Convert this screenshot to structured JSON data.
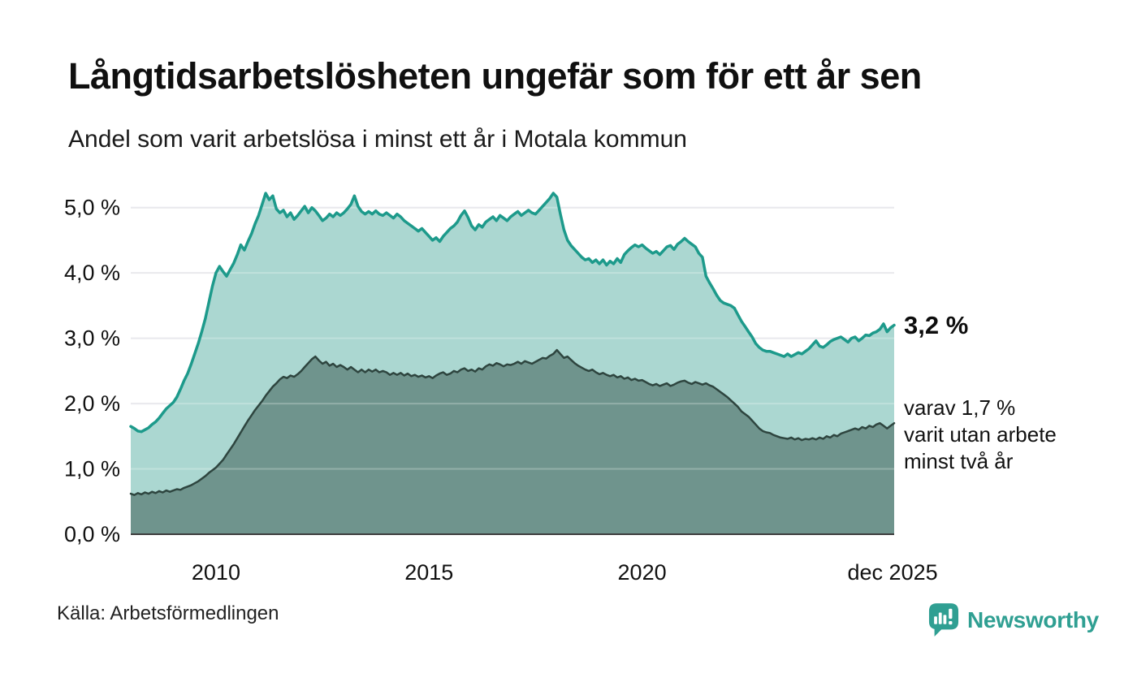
{
  "header": {
    "title": "Långtidsarbetslösheten ungefär som för ett år sen",
    "subtitle": "Andel som varit arbetslösa i minst ett år i Motala kommun"
  },
  "annotations": {
    "latest_total": "3,2 %",
    "two_year_lines": [
      "varav 1,7 %",
      "varit utan arbete",
      "minst två år"
    ]
  },
  "footer": {
    "source": "Källa: Arbetsförmedlingen",
    "brand": "Newsworthy"
  },
  "colors": {
    "accent_teal": "#1d9a8b",
    "fill_light": "#abd7d1",
    "line_dark": "#2e453f",
    "fill_dark": "#6f948d",
    "grid": "#e2e2e7",
    "grid_overlay": "rgba(255,255,255,0.25)",
    "axis": "#3d3d3d",
    "text": "#111111",
    "brand_teal": "#2f9f92"
  },
  "chart_data": {
    "type": "area",
    "title": "Långtidsarbetslösheten ungefär som för ett år sen",
    "subtitle": "Andel som varit arbetslösa i minst ett år i Motala kommun",
    "x_start_year": 2008,
    "points_per_year": 12,
    "x_end_year_fraction": 2025.9167,
    "ylim": [
      0,
      5.45
    ],
    "grid": true,
    "legend_position": "right-annotations",
    "y_ticks": [
      {
        "value": 0,
        "label": "0,0 %"
      },
      {
        "value": 1,
        "label": "1,0 %"
      },
      {
        "value": 2,
        "label": "2,0 %"
      },
      {
        "value": 3,
        "label": "3,0 %"
      },
      {
        "value": 4,
        "label": "4,0 %"
      },
      {
        "value": 5,
        "label": "5,0 %"
      }
    ],
    "x_ticks": [
      {
        "label": "2010",
        "year": 2010.0
      },
      {
        "label": "2015",
        "year": 2015.0
      },
      {
        "label": "2020",
        "year": 2020.0
      },
      {
        "label": "dec 2025",
        "year": 2025.88
      }
    ],
    "series": [
      {
        "name": "Andel som varit arbetslösa minst ett år",
        "latest_value": 3.2,
        "color": "#1d9a8b",
        "fill": "#abd7d1",
        "stroke_width": 3.5,
        "values": [
          1.65,
          1.62,
          1.58,
          1.57,
          1.6,
          1.63,
          1.68,
          1.72,
          1.78,
          1.85,
          1.92,
          1.97,
          2.02,
          2.1,
          2.22,
          2.35,
          2.46,
          2.6,
          2.76,
          2.92,
          3.1,
          3.3,
          3.55,
          3.8,
          4.0,
          4.1,
          4.02,
          3.95,
          4.05,
          4.15,
          4.28,
          4.43,
          4.35,
          4.48,
          4.6,
          4.75,
          4.88,
          5.05,
          5.22,
          5.12,
          5.18,
          4.98,
          4.92,
          4.96,
          4.86,
          4.92,
          4.82,
          4.88,
          4.95,
          5.02,
          4.92,
          5.0,
          4.95,
          4.88,
          4.8,
          4.84,
          4.9,
          4.86,
          4.92,
          4.88,
          4.92,
          4.98,
          5.05,
          5.18,
          5.02,
          4.94,
          4.9,
          4.94,
          4.9,
          4.95,
          4.9,
          4.88,
          4.92,
          4.88,
          4.84,
          4.9,
          4.86,
          4.8,
          4.76,
          4.72,
          4.68,
          4.64,
          4.68,
          4.62,
          4.56,
          4.5,
          4.54,
          4.48,
          4.56,
          4.62,
          4.68,
          4.72,
          4.78,
          4.88,
          4.95,
          4.85,
          4.72,
          4.66,
          4.74,
          4.7,
          4.78,
          4.82,
          4.86,
          4.8,
          4.88,
          4.84,
          4.8,
          4.86,
          4.9,
          4.94,
          4.88,
          4.92,
          4.96,
          4.92,
          4.9,
          4.96,
          5.02,
          5.08,
          5.14,
          5.22,
          5.16,
          4.9,
          4.66,
          4.5,
          4.42,
          4.36,
          4.3,
          4.24,
          4.2,
          4.22,
          4.16,
          4.2,
          4.14,
          4.2,
          4.12,
          4.18,
          4.14,
          4.22,
          4.16,
          4.28,
          4.34,
          4.39,
          4.43,
          4.4,
          4.43,
          4.38,
          4.34,
          4.3,
          4.33,
          4.28,
          4.34,
          4.4,
          4.42,
          4.36,
          4.44,
          4.48,
          4.53,
          4.48,
          4.44,
          4.4,
          4.3,
          4.24,
          3.95,
          3.85,
          3.76,
          3.66,
          3.58,
          3.54,
          3.52,
          3.5,
          3.46,
          3.36,
          3.26,
          3.18,
          3.1,
          3.02,
          2.92,
          2.86,
          2.82,
          2.8,
          2.8,
          2.78,
          2.76,
          2.74,
          2.72,
          2.76,
          2.72,
          2.75,
          2.78,
          2.76,
          2.8,
          2.84,
          2.9,
          2.96,
          2.88,
          2.86,
          2.9,
          2.95,
          2.98,
          3.0,
          3.02,
          2.98,
          2.94,
          3.0,
          3.02,
          2.96,
          3.0,
          3.05,
          3.04,
          3.08,
          3.1,
          3.14,
          3.22,
          3.1,
          3.16,
          3.2
        ]
      },
      {
        "name": "varav utan arbete minst två år",
        "latest_value": 1.7,
        "color": "#2e453f",
        "fill": "#6f948d",
        "stroke_width": 2.5,
        "values": [
          0.62,
          0.6,
          0.63,
          0.61,
          0.64,
          0.62,
          0.65,
          0.63,
          0.66,
          0.64,
          0.67,
          0.65,
          0.67,
          0.69,
          0.68,
          0.71,
          0.73,
          0.75,
          0.78,
          0.81,
          0.85,
          0.89,
          0.94,
          0.98,
          1.02,
          1.08,
          1.14,
          1.22,
          1.3,
          1.38,
          1.47,
          1.56,
          1.65,
          1.74,
          1.82,
          1.9,
          1.97,
          2.04,
          2.12,
          2.19,
          2.26,
          2.31,
          2.37,
          2.41,
          2.39,
          2.43,
          2.41,
          2.45,
          2.5,
          2.56,
          2.62,
          2.68,
          2.72,
          2.66,
          2.61,
          2.64,
          2.58,
          2.61,
          2.56,
          2.59,
          2.56,
          2.52,
          2.56,
          2.52,
          2.48,
          2.52,
          2.48,
          2.52,
          2.49,
          2.52,
          2.48,
          2.5,
          2.48,
          2.44,
          2.47,
          2.44,
          2.47,
          2.43,
          2.46,
          2.42,
          2.44,
          2.41,
          2.43,
          2.4,
          2.42,
          2.39,
          2.43,
          2.46,
          2.48,
          2.44,
          2.46,
          2.5,
          2.48,
          2.52,
          2.54,
          2.5,
          2.52,
          2.49,
          2.54,
          2.52,
          2.57,
          2.6,
          2.58,
          2.62,
          2.6,
          2.57,
          2.6,
          2.59,
          2.61,
          2.64,
          2.61,
          2.65,
          2.63,
          2.61,
          2.64,
          2.67,
          2.7,
          2.69,
          2.73,
          2.76,
          2.82,
          2.76,
          2.7,
          2.72,
          2.67,
          2.62,
          2.58,
          2.55,
          2.52,
          2.5,
          2.52,
          2.48,
          2.45,
          2.47,
          2.44,
          2.42,
          2.44,
          2.4,
          2.42,
          2.38,
          2.4,
          2.36,
          2.38,
          2.35,
          2.36,
          2.33,
          2.3,
          2.28,
          2.3,
          2.27,
          2.29,
          2.31,
          2.27,
          2.29,
          2.32,
          2.34,
          2.35,
          2.32,
          2.3,
          2.33,
          2.31,
          2.29,
          2.31,
          2.28,
          2.26,
          2.22,
          2.18,
          2.14,
          2.1,
          2.05,
          2.0,
          1.95,
          1.88,
          1.84,
          1.8,
          1.74,
          1.68,
          1.62,
          1.58,
          1.56,
          1.55,
          1.52,
          1.5,
          1.48,
          1.47,
          1.46,
          1.48,
          1.45,
          1.47,
          1.44,
          1.46,
          1.45,
          1.47,
          1.45,
          1.48,
          1.46,
          1.5,
          1.48,
          1.52,
          1.5,
          1.54,
          1.56,
          1.58,
          1.6,
          1.62,
          1.6,
          1.64,
          1.62,
          1.66,
          1.64,
          1.68,
          1.7,
          1.66,
          1.62,
          1.66,
          1.7
        ]
      }
    ]
  }
}
